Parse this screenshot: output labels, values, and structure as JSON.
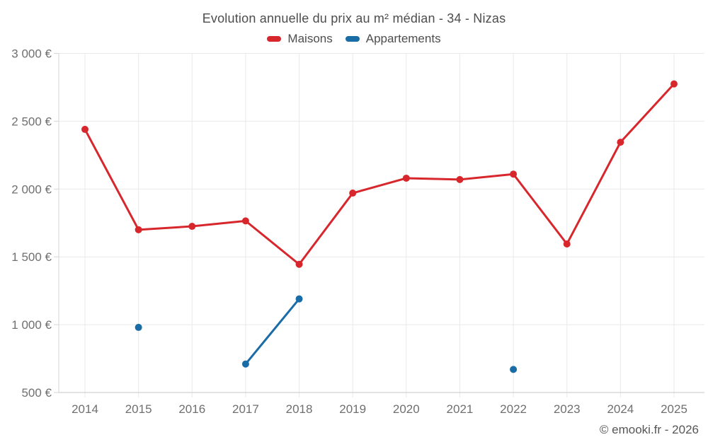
{
  "header": {
    "title": "Evolution annuelle du prix au m² médian - 34 - Nizas"
  },
  "legend": {
    "items": [
      {
        "name": "maisons",
        "label": "Maisons",
        "color": "#d7272d"
      },
      {
        "name": "appartements",
        "label": "Appartements",
        "color": "#1a6ca6"
      }
    ]
  },
  "footer": {
    "watermark": "© emooki.fr - 2026"
  },
  "colors": {
    "background": "#ffffff",
    "grid": "#e9e9e9",
    "axis_left": "#d6d6d6",
    "axis_bottom": "#c6c6c6",
    "tick_label": "#6f6f6f",
    "title_text": "#4d4d4d"
  },
  "chart_data": {
    "type": "line",
    "title": "Evolution annuelle du prix au m² médian - 34 - Nizas",
    "xlabel": "",
    "ylabel": "",
    "x": [
      2014,
      2015,
      2016,
      2017,
      2018,
      2019,
      2020,
      2021,
      2022,
      2023,
      2024,
      2025
    ],
    "series": [
      {
        "name": "Maisons",
        "color": "#d7272d",
        "values": [
          2440,
          1700,
          1725,
          1765,
          1445,
          1970,
          2080,
          2070,
          2110,
          1595,
          2345,
          2775
        ]
      },
      {
        "name": "Appartements",
        "color": "#1a6ca6",
        "values": [
          null,
          980,
          null,
          710,
          1190,
          null,
          null,
          null,
          670,
          null,
          null,
          null
        ]
      }
    ],
    "ylim": [
      500,
      3000
    ],
    "yticks": [
      {
        "value": 500,
        "label": "500 €"
      },
      {
        "value": 1000,
        "label": "1 000 €"
      },
      {
        "value": 1500,
        "label": "1 500 €"
      },
      {
        "value": 2000,
        "label": "2 000 €"
      },
      {
        "value": 2500,
        "label": "2 500 €"
      },
      {
        "value": 3000,
        "label": "3 000 €"
      }
    ],
    "grid": true,
    "legend_position": "top",
    "marker": "circle",
    "line_width": 3,
    "marker_radius": 5
  }
}
